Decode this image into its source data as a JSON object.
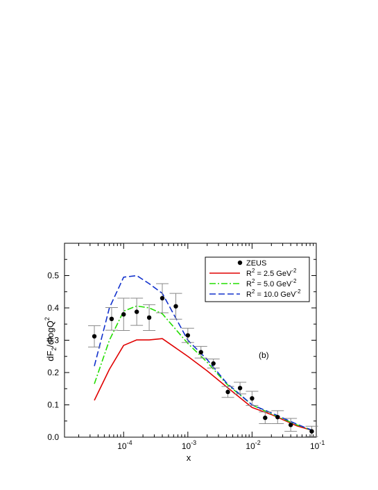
{
  "chart_data": {
    "type": "line",
    "title": "",
    "xlabel": "x",
    "ylabel_base": "dF",
    "ylabel_sub": "2",
    "ylabel_tail": "/dlogQ",
    "ylabel_sup": "2",
    "xscale": "log",
    "xlim": [
      1.2e-05,
      0.1
    ],
    "ylim": [
      0.0,
      0.6
    ],
    "grid": false,
    "legend_position": "top-right",
    "x_ticks": [
      {
        "value": 0.0001,
        "base": "10",
        "exp": "-4"
      },
      {
        "value": 0.001,
        "base": "10",
        "exp": "-3"
      },
      {
        "value": 0.01,
        "base": "10",
        "exp": "-2"
      },
      {
        "value": 0.1,
        "base": "10",
        "exp": "-1"
      }
    ],
    "y_ticks": [
      {
        "value": 0.0,
        "label": "0.0"
      },
      {
        "value": 0.1,
        "label": "0.1"
      },
      {
        "value": 0.2,
        "label": "0.2"
      },
      {
        "value": 0.3,
        "label": "0.3"
      },
      {
        "value": 0.4,
        "label": "0.4"
      },
      {
        "value": 0.5,
        "label": "0.5"
      }
    ],
    "annotation": "(b)",
    "data_points": {
      "name": "ZEUS",
      "color": "#000000",
      "points": [
        {
          "x": 3.5e-05,
          "y": 0.312,
          "err": 0.033
        },
        {
          "x": 6.5e-05,
          "y": 0.366,
          "err": 0.035
        },
        {
          "x": 0.0001,
          "y": 0.38,
          "err": 0.05
        },
        {
          "x": 0.00016,
          "y": 0.388,
          "err": 0.042
        },
        {
          "x": 0.00025,
          "y": 0.37,
          "err": 0.04
        },
        {
          "x": 0.0004,
          "y": 0.43,
          "err": 0.045
        },
        {
          "x": 0.00065,
          "y": 0.405,
          "err": 0.04
        },
        {
          "x": 0.001,
          "y": 0.315,
          "err": 0.022
        },
        {
          "x": 0.0016,
          "y": 0.263,
          "err": 0.018
        },
        {
          "x": 0.0025,
          "y": 0.228,
          "err": 0.014
        },
        {
          "x": 0.0042,
          "y": 0.14,
          "err": 0.017
        },
        {
          "x": 0.0065,
          "y": 0.152,
          "err": 0.018
        },
        {
          "x": 0.01,
          "y": 0.12,
          "err": 0.022
        },
        {
          "x": 0.016,
          "y": 0.06,
          "err": 0.018
        },
        {
          "x": 0.025,
          "y": 0.062,
          "err": 0.02
        },
        {
          "x": 0.04,
          "y": 0.038,
          "err": 0.02
        },
        {
          "x": 0.085,
          "y": 0.018,
          "err": 0.016
        }
      ]
    },
    "series": [
      {
        "name_prefix": "R",
        "name_sup": "2",
        "name_value": " = 2.5  GeV",
        "name_unit_sup": "-2",
        "color": "#e00000",
        "dash": "solid",
        "x": [
          3.5e-05,
          6e-05,
          0.0001,
          0.00016,
          0.00025,
          0.0004,
          0.001,
          0.002,
          0.004,
          0.01,
          0.02,
          0.05,
          0.09
        ],
        "values": [
          0.114,
          0.21,
          0.284,
          0.301,
          0.301,
          0.305,
          0.25,
          0.205,
          0.156,
          0.092,
          0.07,
          0.035,
          0.02
        ]
      },
      {
        "name_prefix": "R",
        "name_sup": "2",
        "name_value": " = 5.0  GeV",
        "name_unit_sup": "-2",
        "color": "#22dd00",
        "dash": "dashdot",
        "x": [
          3.5e-05,
          6e-05,
          0.0001,
          0.00016,
          0.00025,
          0.0004,
          0.001,
          0.002,
          0.004,
          0.01,
          0.02,
          0.05,
          0.09
        ],
        "values": [
          0.165,
          0.3,
          0.39,
          0.406,
          0.4,
          0.382,
          0.29,
          0.232,
          0.165,
          0.1,
          0.072,
          0.038,
          0.02
        ]
      },
      {
        "name_prefix": "R",
        "name_sup": "2",
        "name_value": " = 10.0 GeV",
        "name_unit_sup": "-2",
        "color": "#1030cc",
        "dash": "dashed",
        "x": [
          3.5e-05,
          6e-05,
          0.0001,
          0.00016,
          0.00025,
          0.0004,
          0.001,
          0.002,
          0.004,
          0.01,
          0.02,
          0.05,
          0.09
        ],
        "values": [
          0.22,
          0.4,
          0.495,
          0.5,
          0.475,
          0.445,
          0.3,
          0.24,
          0.168,
          0.1,
          0.075,
          0.04,
          0.02
        ]
      }
    ]
  }
}
